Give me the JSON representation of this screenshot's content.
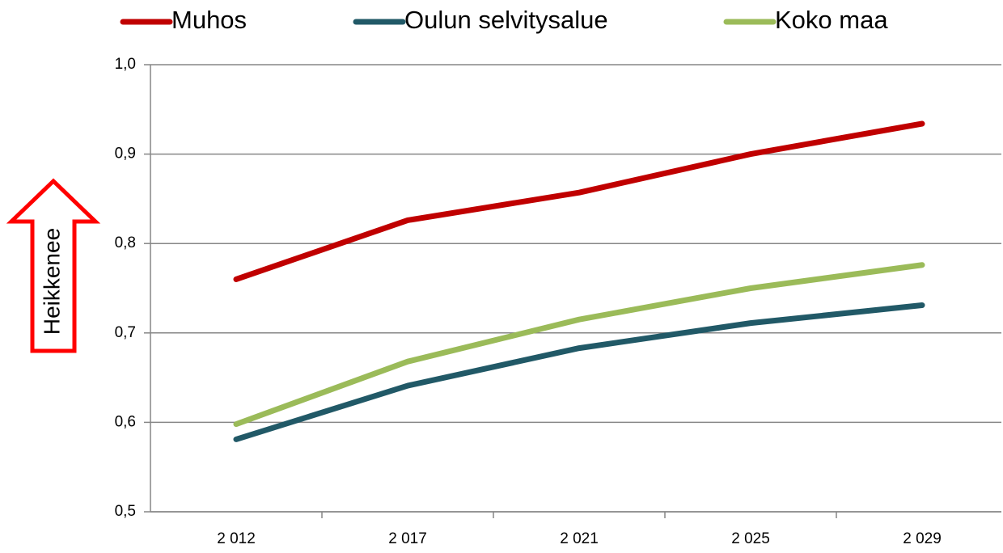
{
  "chart_data": {
    "type": "line",
    "annotation": "Heikkenee",
    "categories": [
      "2 012",
      "2 017",
      "2 021",
      "2 025",
      "2 029"
    ],
    "series": [
      {
        "name": "Muhos",
        "color": "#c00000",
        "values": [
          0.76,
          0.826,
          0.857,
          0.9,
          0.934
        ]
      },
      {
        "name": "Oulun selvitysalue",
        "color": "#215967",
        "values": [
          0.581,
          0.641,
          0.683,
          0.711,
          0.731
        ]
      },
      {
        "name": "Koko maa",
        "color": "#9bbb59",
        "values": [
          0.598,
          0.668,
          0.715,
          0.75,
          0.776
        ]
      }
    ],
    "ylim": [
      0.5,
      1.0
    ],
    "yticks": [
      {
        "value": 0.5,
        "label": "0,5"
      },
      {
        "value": 0.6,
        "label": "0,6"
      },
      {
        "value": 0.7,
        "label": "0,7"
      },
      {
        "value": 0.8,
        "label": "0,8"
      },
      {
        "value": 0.9,
        "label": "0,9"
      },
      {
        "value": 1.0,
        "label": "1,0"
      }
    ],
    "grid": true,
    "legend": "top"
  }
}
